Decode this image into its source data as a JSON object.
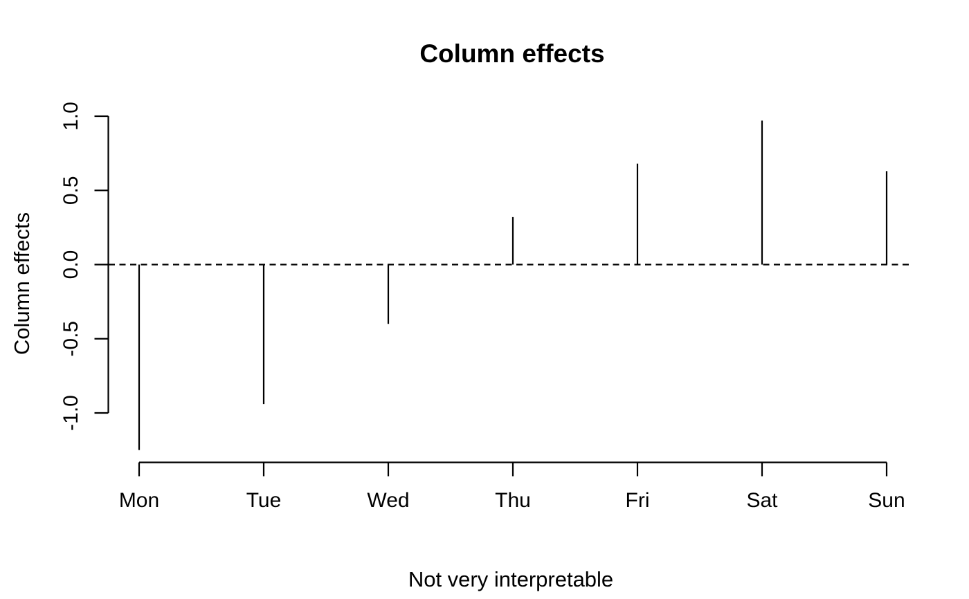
{
  "chart_data": {
    "type": "bar",
    "style": "spike",
    "title": "Column effects",
    "xlabel": "Not very interpretable",
    "ylabel": "Column effects",
    "categories": [
      "Mon",
      "Tue",
      "Wed",
      "Thu",
      "Fri",
      "Sat",
      "Sun"
    ],
    "values": [
      -1.25,
      -0.94,
      -0.4,
      0.32,
      0.68,
      0.97,
      0.63
    ],
    "yticks": [
      -1.0,
      -0.5,
      0.0,
      0.5,
      1.0
    ],
    "ytick_labels": [
      "-1.0",
      "-0.5",
      "0.0",
      "0.5",
      "1.0"
    ],
    "ylim": [
      -1.0,
      1.0
    ],
    "reference_line": {
      "y": 0,
      "line_style": "dashed"
    },
    "grid": false,
    "legend_position": "none",
    "colors": {
      "foreground": "#000000",
      "background": "#ffffff"
    }
  }
}
